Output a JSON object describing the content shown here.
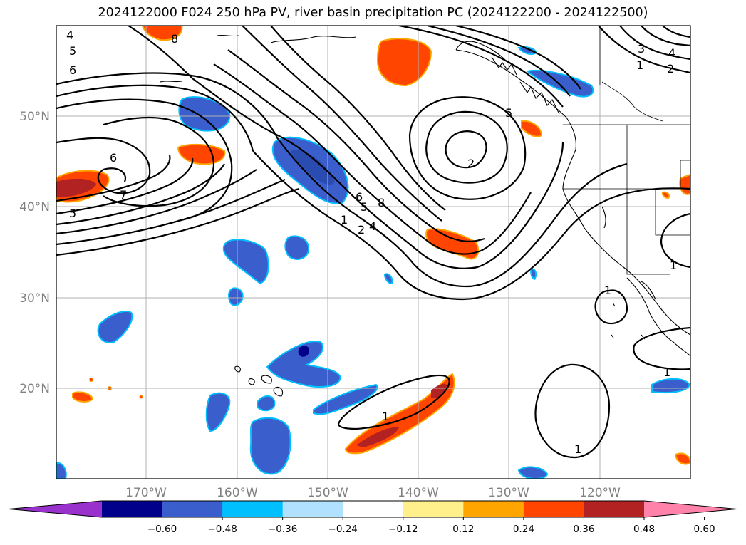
{
  "title": "2024122000 F024 250 hPa PV, river basin precipitation PC (2024122200 - 2024122500)",
  "longitude_labels": [
    "170°W",
    "160°W",
    "150°W",
    "140°W",
    "130°W",
    "120°W"
  ],
  "latitude_labels": [
    "50°N",
    "40°N",
    "30°N",
    "20°N"
  ],
  "colorbar": {
    "ticks": [
      "−0.60",
      "−0.48",
      "−0.36",
      "−0.24",
      "−0.12",
      "0.12",
      "0.24",
      "0.36",
      "0.48",
      "0.60"
    ],
    "colors": [
      "#9932cc",
      "#00008b",
      "#3a5fcd",
      "#00bfff",
      "#b0e2ff",
      "#ffffff",
      "#fff08c",
      "#ffa500",
      "#ff4500",
      "#b22222",
      "#ff82ab"
    ]
  },
  "contour_labels": [
    "4",
    "5",
    "6",
    "6",
    "7",
    "5",
    "8",
    "2",
    "5",
    "8",
    "6",
    "5",
    "4",
    "1",
    "2",
    "3",
    "4",
    "2",
    "1",
    "1",
    "1",
    "1",
    "1",
    "1"
  ],
  "map_extent": {
    "lon": [
      -180,
      -110
    ],
    "lat": [
      10,
      60
    ]
  },
  "layers": [
    "250 hPa PV contours",
    "river basin precipitation PC (shaded)",
    "coastlines",
    "state borders",
    "gridlines"
  ]
}
